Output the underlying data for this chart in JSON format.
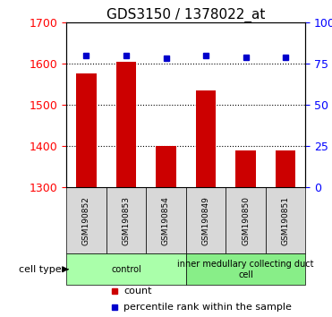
{
  "title": "GDS3150 / 1378022_at",
  "samples": [
    "GSM190852",
    "GSM190853",
    "GSM190854",
    "GSM190849",
    "GSM190850",
    "GSM190851"
  ],
  "counts": [
    1575,
    1605,
    1400,
    1535,
    1390,
    1390
  ],
  "percentiles": [
    80,
    80,
    78,
    80,
    79,
    79
  ],
  "ylim_left": [
    1300,
    1700
  ],
  "ylim_right": [
    0,
    100
  ],
  "yticks_left": [
    1300,
    1400,
    1500,
    1600,
    1700
  ],
  "yticks_right": [
    0,
    25,
    50,
    75,
    100
  ],
  "bar_color": "#cc0000",
  "dot_color": "#0000cc",
  "bar_bottom": 1300,
  "cell_types": [
    {
      "label": "control",
      "n_samples": 3,
      "color": "#aaffaa"
    },
    {
      "label": "inner medullary collecting duct\ncell",
      "n_samples": 3,
      "color": "#88ee88"
    }
  ],
  "legend_count_color": "#cc0000",
  "legend_dot_color": "#0000cc",
  "cell_type_label": "cell type",
  "left_tick_color": "red",
  "right_tick_color": "blue",
  "grid_color": "black",
  "bg_label": "#d8d8d8",
  "title_fontsize": 11,
  "tick_fontsize": 9,
  "label_fontsize": 8,
  "legend_fontsize": 8
}
